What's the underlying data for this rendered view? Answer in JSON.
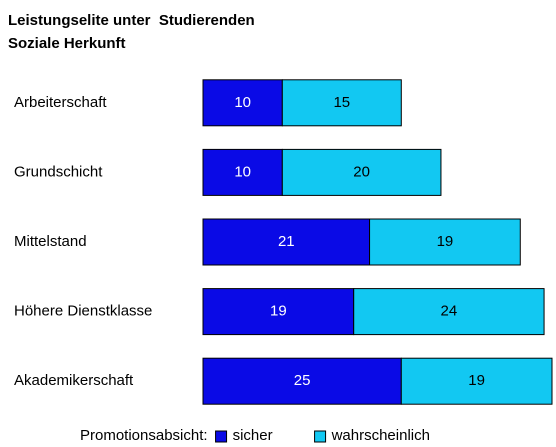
{
  "chart_data": {
    "type": "stacked_barh",
    "title": "Leistungselite unter  Studierenden",
    "subtitle": "Soziale Herkunft",
    "categories": [
      "Arbeiterschaft",
      "Grundschicht",
      "Mittelstand",
      "Höhere Dienstklasse",
      "Akademikerschaft"
    ],
    "legend_title": "Promotionsabsicht:",
    "legend": "bottom",
    "series": [
      {
        "name": "sicher",
        "color": "#0a0ae6",
        "values": [
          10,
          10,
          21,
          19,
          25
        ]
      },
      {
        "name": "wahrscheinlich",
        "color": "#12c8f2",
        "values": [
          15,
          20,
          19,
          24,
          19
        ]
      }
    ]
  }
}
